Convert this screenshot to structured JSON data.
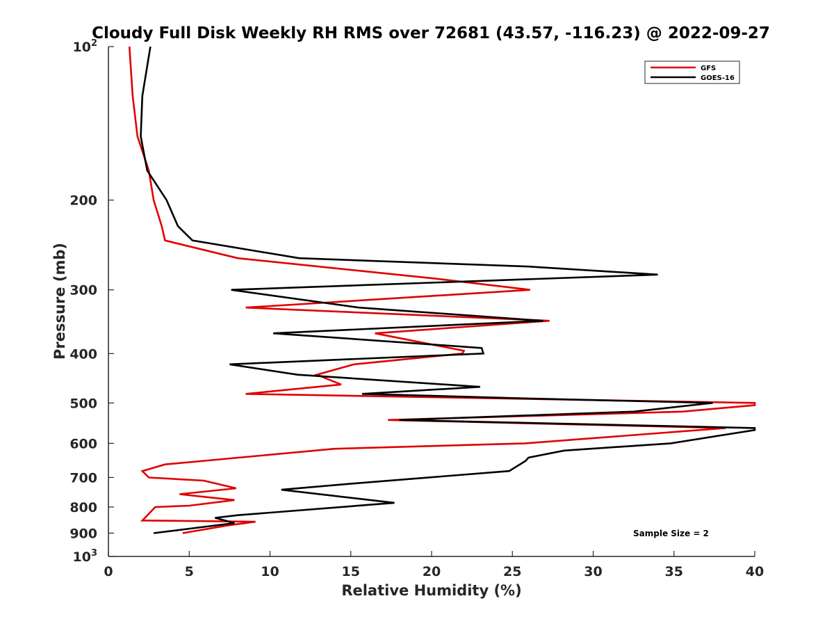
{
  "chart_data": {
    "type": "line",
    "title": "Cloudy Full Disk Weekly RH RMS over 72681 (43.57, -116.23) @ 2022-09-27",
    "xlabel": "Relative Humidity (%)",
    "ylabel": "Pressure (mb)",
    "xlim": [
      0,
      40
    ],
    "ylim": [
      100,
      1000
    ],
    "y_scale": "log",
    "y_reversed": true,
    "grid": false,
    "legend_position": "top-right",
    "x_ticks": [
      "0",
      "5",
      "10",
      "15",
      "20",
      "25",
      "30",
      "35",
      "40"
    ],
    "y_ticks": [
      {
        "value": 100,
        "base": "10",
        "exp": "2"
      },
      {
        "value": 200,
        "label": "200"
      },
      {
        "value": 300,
        "label": "300"
      },
      {
        "value": 400,
        "label": "400"
      },
      {
        "value": 500,
        "label": "500"
      },
      {
        "value": 600,
        "label": "600"
      },
      {
        "value": 700,
        "label": "700"
      },
      {
        "value": 800,
        "label": "800"
      },
      {
        "value": 900,
        "label": "900"
      },
      {
        "value": 1000,
        "base": "10",
        "exp": "3"
      }
    ],
    "annotation": "Sample Size = 2",
    "series": [
      {
        "name": "GFS",
        "color": "#e00000",
        "points": [
          [
            1.3,
            100
          ],
          [
            1.5,
            125
          ],
          [
            1.8,
            150
          ],
          [
            2.5,
            175
          ],
          [
            2.8,
            200
          ],
          [
            3.3,
            225
          ],
          [
            3.5,
            240
          ],
          [
            8.0,
            260
          ],
          [
            20.2,
            285
          ],
          [
            26.1,
            300
          ],
          [
            8.5,
            325
          ],
          [
            27.3,
            345
          ],
          [
            16.5,
            365
          ],
          [
            22.0,
            395
          ],
          [
            21.9,
            400
          ],
          [
            15.2,
            420
          ],
          [
            12.9,
            440
          ],
          [
            14.4,
            460
          ],
          [
            8.5,
            480
          ],
          [
            40.0,
            500
          ],
          [
            40.0,
            505
          ],
          [
            35.5,
            520
          ],
          [
            17.3,
            540
          ],
          [
            38.2,
            560
          ],
          [
            25.8,
            600
          ],
          [
            14.0,
            615
          ],
          [
            3.5,
            660
          ],
          [
            2.1,
            680
          ],
          [
            2.5,
            700
          ],
          [
            5.9,
            710
          ],
          [
            7.9,
            735
          ],
          [
            4.4,
            755
          ],
          [
            7.8,
            775
          ],
          [
            5.0,
            795
          ],
          [
            2.9,
            800
          ],
          [
            2.1,
            850
          ],
          [
            9.1,
            855
          ],
          [
            7.3,
            870
          ],
          [
            4.6,
            900
          ]
        ]
      },
      {
        "name": "GOES-16",
        "color": "#000000",
        "points": [
          [
            2.6,
            100
          ],
          [
            2.1,
            125
          ],
          [
            2.0,
            150
          ],
          [
            2.4,
            175
          ],
          [
            3.6,
            200
          ],
          [
            4.3,
            225
          ],
          [
            5.2,
            240
          ],
          [
            11.8,
            260
          ],
          [
            26.0,
            270
          ],
          [
            34.0,
            280
          ],
          [
            7.6,
            300
          ],
          [
            15.5,
            325
          ],
          [
            26.9,
            345
          ],
          [
            10.2,
            365
          ],
          [
            23.1,
            390
          ],
          [
            23.2,
            400
          ],
          [
            7.5,
            420
          ],
          [
            11.7,
            440
          ],
          [
            23.0,
            465
          ],
          [
            15.7,
            480
          ],
          [
            26.0,
            490
          ],
          [
            37.4,
            500
          ],
          [
            32.5,
            520
          ],
          [
            18.0,
            540
          ],
          [
            40.0,
            560
          ],
          [
            40.0,
            565
          ],
          [
            34.8,
            600
          ],
          [
            28.2,
            620
          ],
          [
            26.0,
            640
          ],
          [
            25.8,
            650
          ],
          [
            24.8,
            680
          ],
          [
            15.0,
            720
          ],
          [
            10.7,
            740
          ],
          [
            17.7,
            785
          ],
          [
            8.0,
            830
          ],
          [
            6.6,
            840
          ],
          [
            7.8,
            860
          ],
          [
            2.8,
            900
          ]
        ]
      }
    ]
  }
}
